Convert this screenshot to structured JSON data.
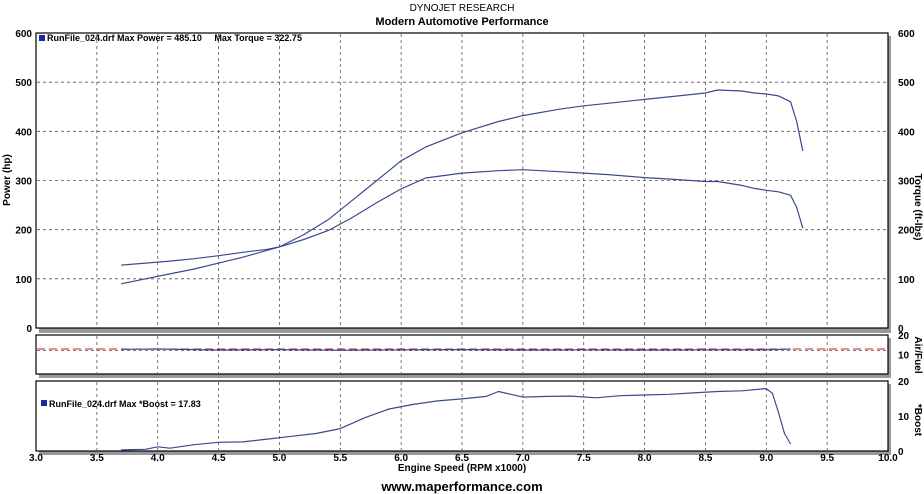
{
  "chart_data": [
    {
      "type": "line",
      "header": "DYNOJET RESEARCH",
      "title": "Modern Automotive Performance",
      "legend_text": "RunFile_024.drf Max Power = 485.10     Max Torque = 322.75",
      "ylabel": "Power (hp)",
      "ylabel_right": "Torque (ft-lbs)",
      "ylim": [
        0,
        600
      ],
      "yticks": [
        "0",
        "100",
        "200",
        "300",
        "400",
        "500",
        "600"
      ],
      "xlim": [
        3.0,
        10.0
      ],
      "colors": {
        "line": "#3a4a8f",
        "legend_box": "#1a2a9a"
      },
      "series": [
        {
          "name": "Power",
          "x": [
            3.7,
            3.9,
            4.1,
            4.3,
            4.5,
            4.7,
            4.9,
            5.0,
            5.2,
            5.4,
            5.6,
            5.8,
            6.0,
            6.2,
            6.5,
            6.8,
            7.0,
            7.3,
            7.5,
            7.7,
            8.0,
            8.2,
            8.5,
            8.6,
            8.8,
            8.9,
            9.0,
            9.1,
            9.2,
            9.25,
            9.3
          ],
          "y": [
            90,
            100,
            110,
            120,
            132,
            144,
            158,
            165,
            190,
            220,
            260,
            300,
            340,
            368,
            397,
            420,
            432,
            445,
            452,
            457,
            465,
            470,
            478,
            484,
            482,
            478,
            476,
            472,
            460,
            420,
            360
          ]
        },
        {
          "name": "Torque",
          "x": [
            3.7,
            3.9,
            4.1,
            4.3,
            4.5,
            4.7,
            4.9,
            5.0,
            5.2,
            5.4,
            5.6,
            5.8,
            6.0,
            6.2,
            6.5,
            6.8,
            7.0,
            7.3,
            7.5,
            7.7,
            8.0,
            8.2,
            8.5,
            8.6,
            8.8,
            8.9,
            9.0,
            9.1,
            9.2,
            9.25,
            9.3
          ],
          "y": [
            128,
            132,
            136,
            141,
            147,
            154,
            160,
            165,
            180,
            198,
            225,
            255,
            283,
            305,
            315,
            320,
            322,
            318,
            315,
            312,
            306,
            303,
            298,
            298,
            290,
            284,
            280,
            277,
            270,
            245,
            203
          ]
        }
      ]
    },
    {
      "type": "line",
      "ylabel_right": "Air/Fuel",
      "ylim": [
        0,
        20
      ],
      "yticks": [
        "10",
        "20"
      ],
      "xlim": [
        3.0,
        10.0
      ],
      "colors": {
        "line": "#3a4a8f",
        "reference": "#d02020"
      },
      "reference_line": 12.8,
      "series": [
        {
          "name": "Air/Fuel",
          "x": [
            3.7,
            4.0,
            4.5,
            5.0,
            5.5,
            6.0,
            6.5,
            7.0,
            7.5,
            8.0,
            8.5,
            9.0,
            9.2
          ],
          "y": [
            12.6,
            12.8,
            12.3,
            12.5,
            12.2,
            12.4,
            12.5,
            12.3,
            12.4,
            12.3,
            12.4,
            12.4,
            12.8
          ]
        }
      ]
    },
    {
      "type": "line",
      "legend_text": "RunFile_024.drf Max *Boost = 17.83",
      "ylabel_right": "*Boost",
      "ylim": [
        0,
        20
      ],
      "yticks": [
        "0",
        "10",
        "20"
      ],
      "xlim": [
        3.0,
        10.0
      ],
      "xlabel": "Engine Speed (RPM x1000)",
      "xticks": [
        "3.0",
        "3.5",
        "4.0",
        "4.5",
        "5.0",
        "5.5",
        "6.0",
        "6.5",
        "7.0",
        "7.5",
        "8.0",
        "8.5",
        "9.0",
        "9.5",
        "10.0"
      ],
      "colors": {
        "line": "#3a4a8f",
        "legend_box": "#1a2a9a"
      },
      "series": [
        {
          "name": "Boost",
          "x": [
            3.7,
            3.9,
            4.0,
            4.1,
            4.3,
            4.5,
            4.7,
            4.9,
            5.1,
            5.3,
            5.5,
            5.7,
            5.9,
            6.1,
            6.3,
            6.5,
            6.7,
            6.8,
            6.9,
            7.0,
            7.2,
            7.4,
            7.6,
            7.8,
            8.0,
            8.2,
            8.4,
            8.6,
            8.8,
            9.0,
            9.05,
            9.1,
            9.15,
            9.2
          ],
          "y": [
            0.3,
            0.5,
            1.2,
            0.8,
            1.8,
            2.5,
            2.6,
            3.4,
            4.2,
            5.0,
            6.4,
            9.5,
            12.0,
            13.3,
            14.3,
            14.9,
            15.6,
            17.0,
            16.2,
            15.4,
            15.6,
            15.7,
            15.2,
            15.8,
            16.0,
            16.2,
            16.6,
            17.0,
            17.2,
            17.83,
            16.5,
            11.0,
            5.0,
            2.0
          ]
        }
      ]
    }
  ],
  "footer": {
    "website": "www.maperformance.com"
  }
}
